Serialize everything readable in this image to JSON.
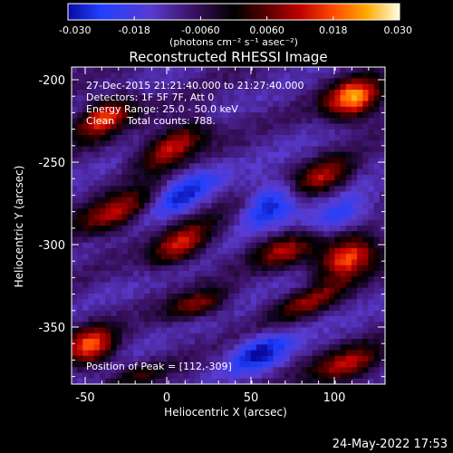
{
  "colorbar": {
    "tick_labels": [
      "-0.030",
      "-0.018",
      "-0.0060",
      "0.0060",
      "0.018",
      "0.030"
    ],
    "units_label": "(photons cm⁻² s⁻¹ asec⁻²)",
    "range": [
      -0.03,
      0.03
    ]
  },
  "image": {
    "title": "Reconstructed RHESSI Image",
    "info_lines": [
      "27-Dec-2015 21:21:40.000 to 21:27:40.000",
      "Detectors: 1F 5F 7F, Att 0",
      "Energy Range: 25.0 - 50.0 keV",
      "Clean    Total counts: 788."
    ],
    "peak_text": "Position of Peak = [112,-309]",
    "x_axis": {
      "label": "Heliocentric X (arcsec)",
      "tick_labels": [
        "-50",
        "0",
        "50",
        "100"
      ],
      "range": [
        -57,
        130
      ]
    },
    "y_axis": {
      "label": "Heliocentric Y (arcsec)",
      "tick_labels": [
        "-200",
        "-250",
        "-300",
        "-350"
      ],
      "range": [
        -388,
        -193
      ]
    }
  },
  "footer": {
    "timestamp": "24-May-2022 17:53"
  },
  "colors": {
    "background": "#000000",
    "foreground": "#ffffff"
  }
}
